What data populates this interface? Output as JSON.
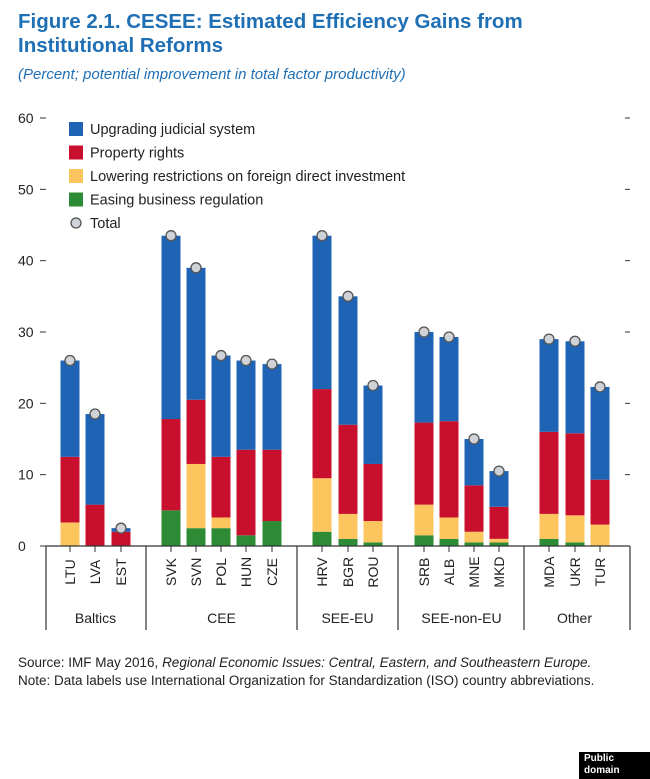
{
  "title": "Figure 2.1. CESEE: Estimated Efficiency Gains from Institutional Reforms",
  "subtitle": "(Percent; potential improvement in total factor productivity)",
  "source_label": "Source: IMF May 2016, ",
  "source_italic": "Regional Economic Issues: Central, Eastern, and Southeastern Europe.",
  "note": "Note: Data labels use International Organization for Standardization (ISO) country abbreviations.",
  "badge": "Public domain",
  "colors": {
    "judicial": "#1f63b4",
    "property": "#c8102e",
    "fdi": "#fcc55e",
    "business": "#2e8b35",
    "total_fill": "#cfd2d6",
    "total_stroke": "#555555"
  },
  "chart_data": {
    "type": "bar",
    "stacked": true,
    "ylim": [
      0,
      60
    ],
    "yticks": [
      "0",
      "10",
      "20",
      "30",
      "40",
      "50",
      "60"
    ],
    "grid": false,
    "legend_position": "top-left",
    "categories": [
      "LTU",
      "LVA",
      "EST",
      "SVK",
      "SVN",
      "POL",
      "HUN",
      "CZE",
      "HRV",
      "BGR",
      "ROU",
      "SRB",
      "ALB",
      "MNE",
      "MKD",
      "MDA",
      "UKR",
      "TUR"
    ],
    "groups": [
      {
        "name": "Baltics",
        "members": [
          "LTU",
          "LVA",
          "EST"
        ]
      },
      {
        "name": "CEE",
        "members": [
          "SVK",
          "SVN",
          "POL",
          "HUN",
          "CZE"
        ]
      },
      {
        "name": "SEE-EU",
        "members": [
          "HRV",
          "BGR",
          "ROU"
        ]
      },
      {
        "name": "SEE-non-EU",
        "members": [
          "SRB",
          "ALB",
          "MNE",
          "MKD"
        ]
      },
      {
        "name": "Other",
        "members": [
          "MDA",
          "UKR",
          "TUR"
        ]
      }
    ],
    "series": [
      {
        "name": "Easing business regulation",
        "key": "business",
        "values": [
          0,
          0,
          0,
          5,
          2.5,
          2.5,
          1.5,
          3.5,
          2,
          1,
          0.5,
          1.5,
          1,
          0.5,
          0.5,
          1,
          0.5,
          0
        ]
      },
      {
        "name": "Lowering restrictions on foreign direct investment",
        "key": "fdi",
        "values": [
          3.3,
          0,
          0,
          0,
          9,
          1.5,
          0,
          0,
          7.5,
          3.5,
          3,
          4.3,
          3,
          1.5,
          0.5,
          3.5,
          3.8,
          3
        ]
      },
      {
        "name": "Property rights",
        "key": "property",
        "values": [
          9.2,
          5.8,
          2,
          12.8,
          9,
          8.5,
          12,
          10,
          12.5,
          12.5,
          8,
          11.5,
          13.5,
          6.5,
          4.5,
          11.5,
          11.5,
          6.3
        ]
      },
      {
        "name": "Upgrading judicial system",
        "key": "judicial",
        "values": [
          13.5,
          12.7,
          0.5,
          25.7,
          18.5,
          14.2,
          12.5,
          12,
          21.5,
          18,
          11,
          12.7,
          11.8,
          6.5,
          5,
          13,
          12.9,
          13
        ]
      }
    ],
    "totals": [
      26,
      18.5,
      2.5,
      43.5,
      39,
      26.7,
      26,
      25.5,
      43.5,
      35,
      22.5,
      30,
      29.3,
      15,
      10.5,
      29,
      28.7,
      22.3
    ],
    "total_name": "Total",
    "legend": [
      {
        "label": "Upgrading judicial system",
        "key": "judicial",
        "marker": "square"
      },
      {
        "label": "Property rights",
        "key": "property",
        "marker": "square"
      },
      {
        "label": "Lowering restrictions on foreign direct investment",
        "key": "fdi",
        "marker": "square"
      },
      {
        "label": "Easing business regulation",
        "key": "business",
        "marker": "square"
      },
      {
        "label": "Total",
        "key": "total",
        "marker": "circle"
      }
    ]
  }
}
